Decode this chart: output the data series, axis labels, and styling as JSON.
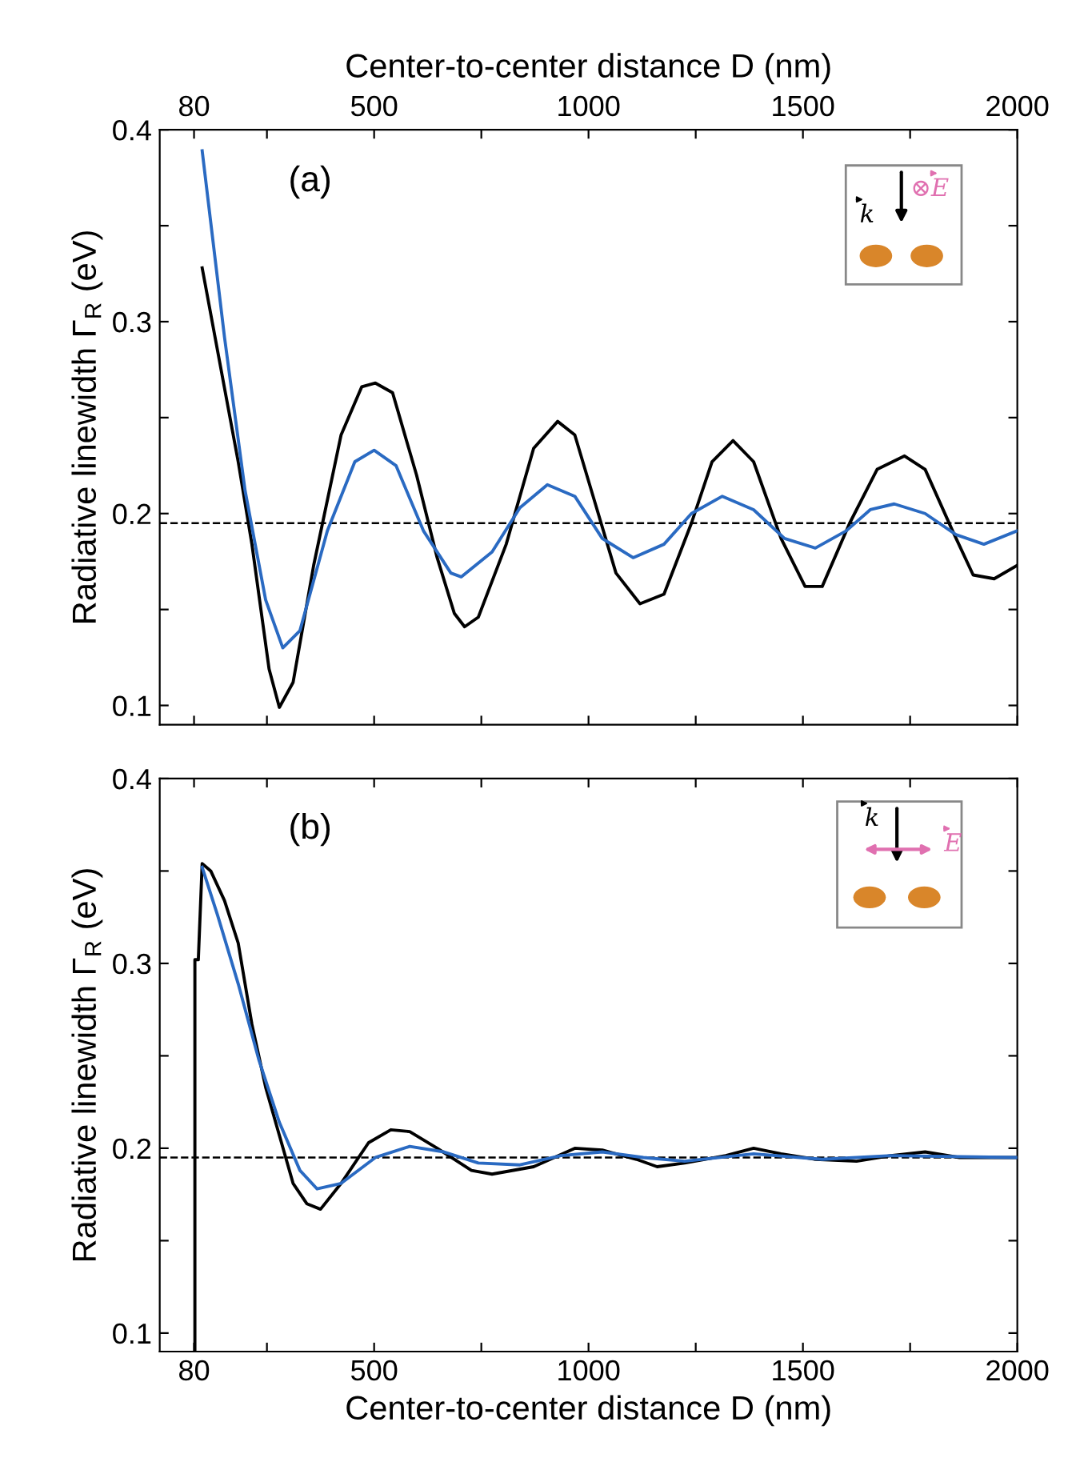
{
  "chart_data": [
    {
      "type": "line",
      "xlabel": "Center-to-center distance D (nm)",
      "ylabel": "Radiative linewidth Γ$_{R}$ (eV)",
      "xlim": [
        0,
        2000
      ],
      "xticks": [
        80,
        {
          "value": 250,
          "label": null
        },
        500,
        {
          "value": 750,
          "label": null
        },
        1000,
        {
          "value": 1250,
          "label": null
        },
        1500,
        {
          "value": 1750,
          "label": null
        },
        2000
      ],
      "ylim": [
        0.09,
        0.4
      ],
      "yticks": [
        0.1,
        {
          "value": 0.15,
          "label": null
        },
        0.2,
        {
          "value": 0.25,
          "label": null
        },
        0.3,
        {
          "value": 0.35,
          "label": null
        },
        0.4
      ],
      "annotations": [
        "(a)",
        "k",
        "⊗E"
      ],
      "ref_lines": [
        {
          "axis": "y",
          "value": 0.195,
          "label": null,
          "color": "#000000",
          "line_style": "dashed"
        }
      ],
      "grid": false,
      "legend": false,
      "marker": "none",
      "line_style": "solid",
      "series": [
        {
          "color": "#000000",
          "x": [
            99,
            183,
            215,
            255,
            279,
            311,
            359,
            423,
            471,
            503,
            543,
            599,
            647,
            687,
            711,
            743,
            808,
            872,
            928,
            968,
            1016,
            1064,
            1120,
            1176,
            1240,
            1288,
            1337,
            1385,
            1449,
            1505,
            1545,
            1609,
            1673,
            1737,
            1785,
            1849,
            1897,
            1946,
            2000
          ],
          "values": [
            0.328,
            0.227,
            0.184,
            0.119,
            0.099,
            0.112,
            0.173,
            0.241,
            0.266,
            0.268,
            0.263,
            0.22,
            0.177,
            0.148,
            0.141,
            0.146,
            0.184,
            0.234,
            0.248,
            0.241,
            0.205,
            0.169,
            0.153,
            0.158,
            0.195,
            0.227,
            0.238,
            0.227,
            0.187,
            0.162,
            0.162,
            0.195,
            0.223,
            0.23,
            0.223,
            0.191,
            0.168,
            0.166,
            0.173
          ]
        },
        {
          "color": "#2a6ac2",
          "x": [
            99,
            151,
            199,
            247,
            287,
            327,
            391,
            455,
            500,
            551,
            615,
            679,
            703,
            775,
            840,
            904,
            968,
            1032,
            1104,
            1176,
            1240,
            1312,
            1385,
            1457,
            1529,
            1601,
            1657,
            1713,
            1785,
            1857,
            1922,
            2000
          ],
          "values": [
            0.389,
            0.292,
            0.212,
            0.155,
            0.13,
            0.139,
            0.191,
            0.227,
            0.233,
            0.225,
            0.191,
            0.169,
            0.167,
            0.18,
            0.203,
            0.215,
            0.209,
            0.187,
            0.177,
            0.184,
            0.2,
            0.209,
            0.202,
            0.187,
            0.182,
            0.191,
            0.202,
            0.205,
            0.2,
            0.189,
            0.184,
            0.191
          ]
        }
      ]
    },
    {
      "type": "line",
      "xlabel": "Center-to-center distance D (nm)",
      "ylabel": "Radiative linewidth Γ$_{R}$ (eV)",
      "xlim": [
        0,
        2000
      ],
      "xticks": [
        80,
        {
          "value": 250,
          "label": null
        },
        500,
        {
          "value": 750,
          "label": null
        },
        1000,
        {
          "value": 1250,
          "label": null
        },
        1500,
        {
          "value": 1750,
          "label": null
        },
        2000
      ],
      "ylim": [
        0.09,
        0.4
      ],
      "yticks": [
        0.1,
        {
          "value": 0.15,
          "label": null
        },
        0.2,
        {
          "value": 0.25,
          "label": null
        },
        0.3,
        {
          "value": 0.35,
          "label": null
        },
        0.4
      ],
      "annotations": [
        "(b)",
        "k",
        "E"
      ],
      "ref_lines": [
        {
          "axis": "y",
          "value": 0.195,
          "label": null,
          "color": "#000000",
          "line_style": "dashed"
        }
      ],
      "grid": false,
      "legend": false,
      "marker": "none",
      "line_style": "solid",
      "series": [
        {
          "color": "#000000",
          "x": [
            82,
            82,
            90,
            99,
            119,
            151,
            183,
            215,
            247,
            279,
            311,
            343,
            375,
            423,
            487,
            539,
            583,
            647,
            727,
            775,
            872,
            968,
            1032,
            1112,
            1160,
            1224,
            1320,
            1385,
            1449,
            1529,
            1625,
            1705,
            1785,
            1865,
            2000
          ],
          "values": [
            0.09,
            0.302,
            0.302,
            0.354,
            0.35,
            0.334,
            0.311,
            0.267,
            0.233,
            0.207,
            0.181,
            0.17,
            0.167,
            0.181,
            0.203,
            0.21,
            0.209,
            0.2,
            0.188,
            0.186,
            0.19,
            0.2,
            0.199,
            0.194,
            0.19,
            0.192,
            0.196,
            0.2,
            0.197,
            0.194,
            0.193,
            0.196,
            0.198,
            0.195,
            0.195
          ]
        },
        {
          "color": "#2a6ac2",
          "x": [
            99,
            135,
            183,
            231,
            279,
            327,
            367,
            423,
            503,
            583,
            663,
            743,
            840,
            936,
            1032,
            1128,
            1224,
            1385,
            1545,
            1705,
            2000
          ],
          "values": [
            0.352,
            0.326,
            0.289,
            0.248,
            0.214,
            0.188,
            0.178,
            0.181,
            0.195,
            0.201,
            0.198,
            0.192,
            0.191,
            0.196,
            0.198,
            0.195,
            0.193,
            0.197,
            0.194,
            0.196,
            0.195
          ]
        }
      ]
    }
  ]
}
